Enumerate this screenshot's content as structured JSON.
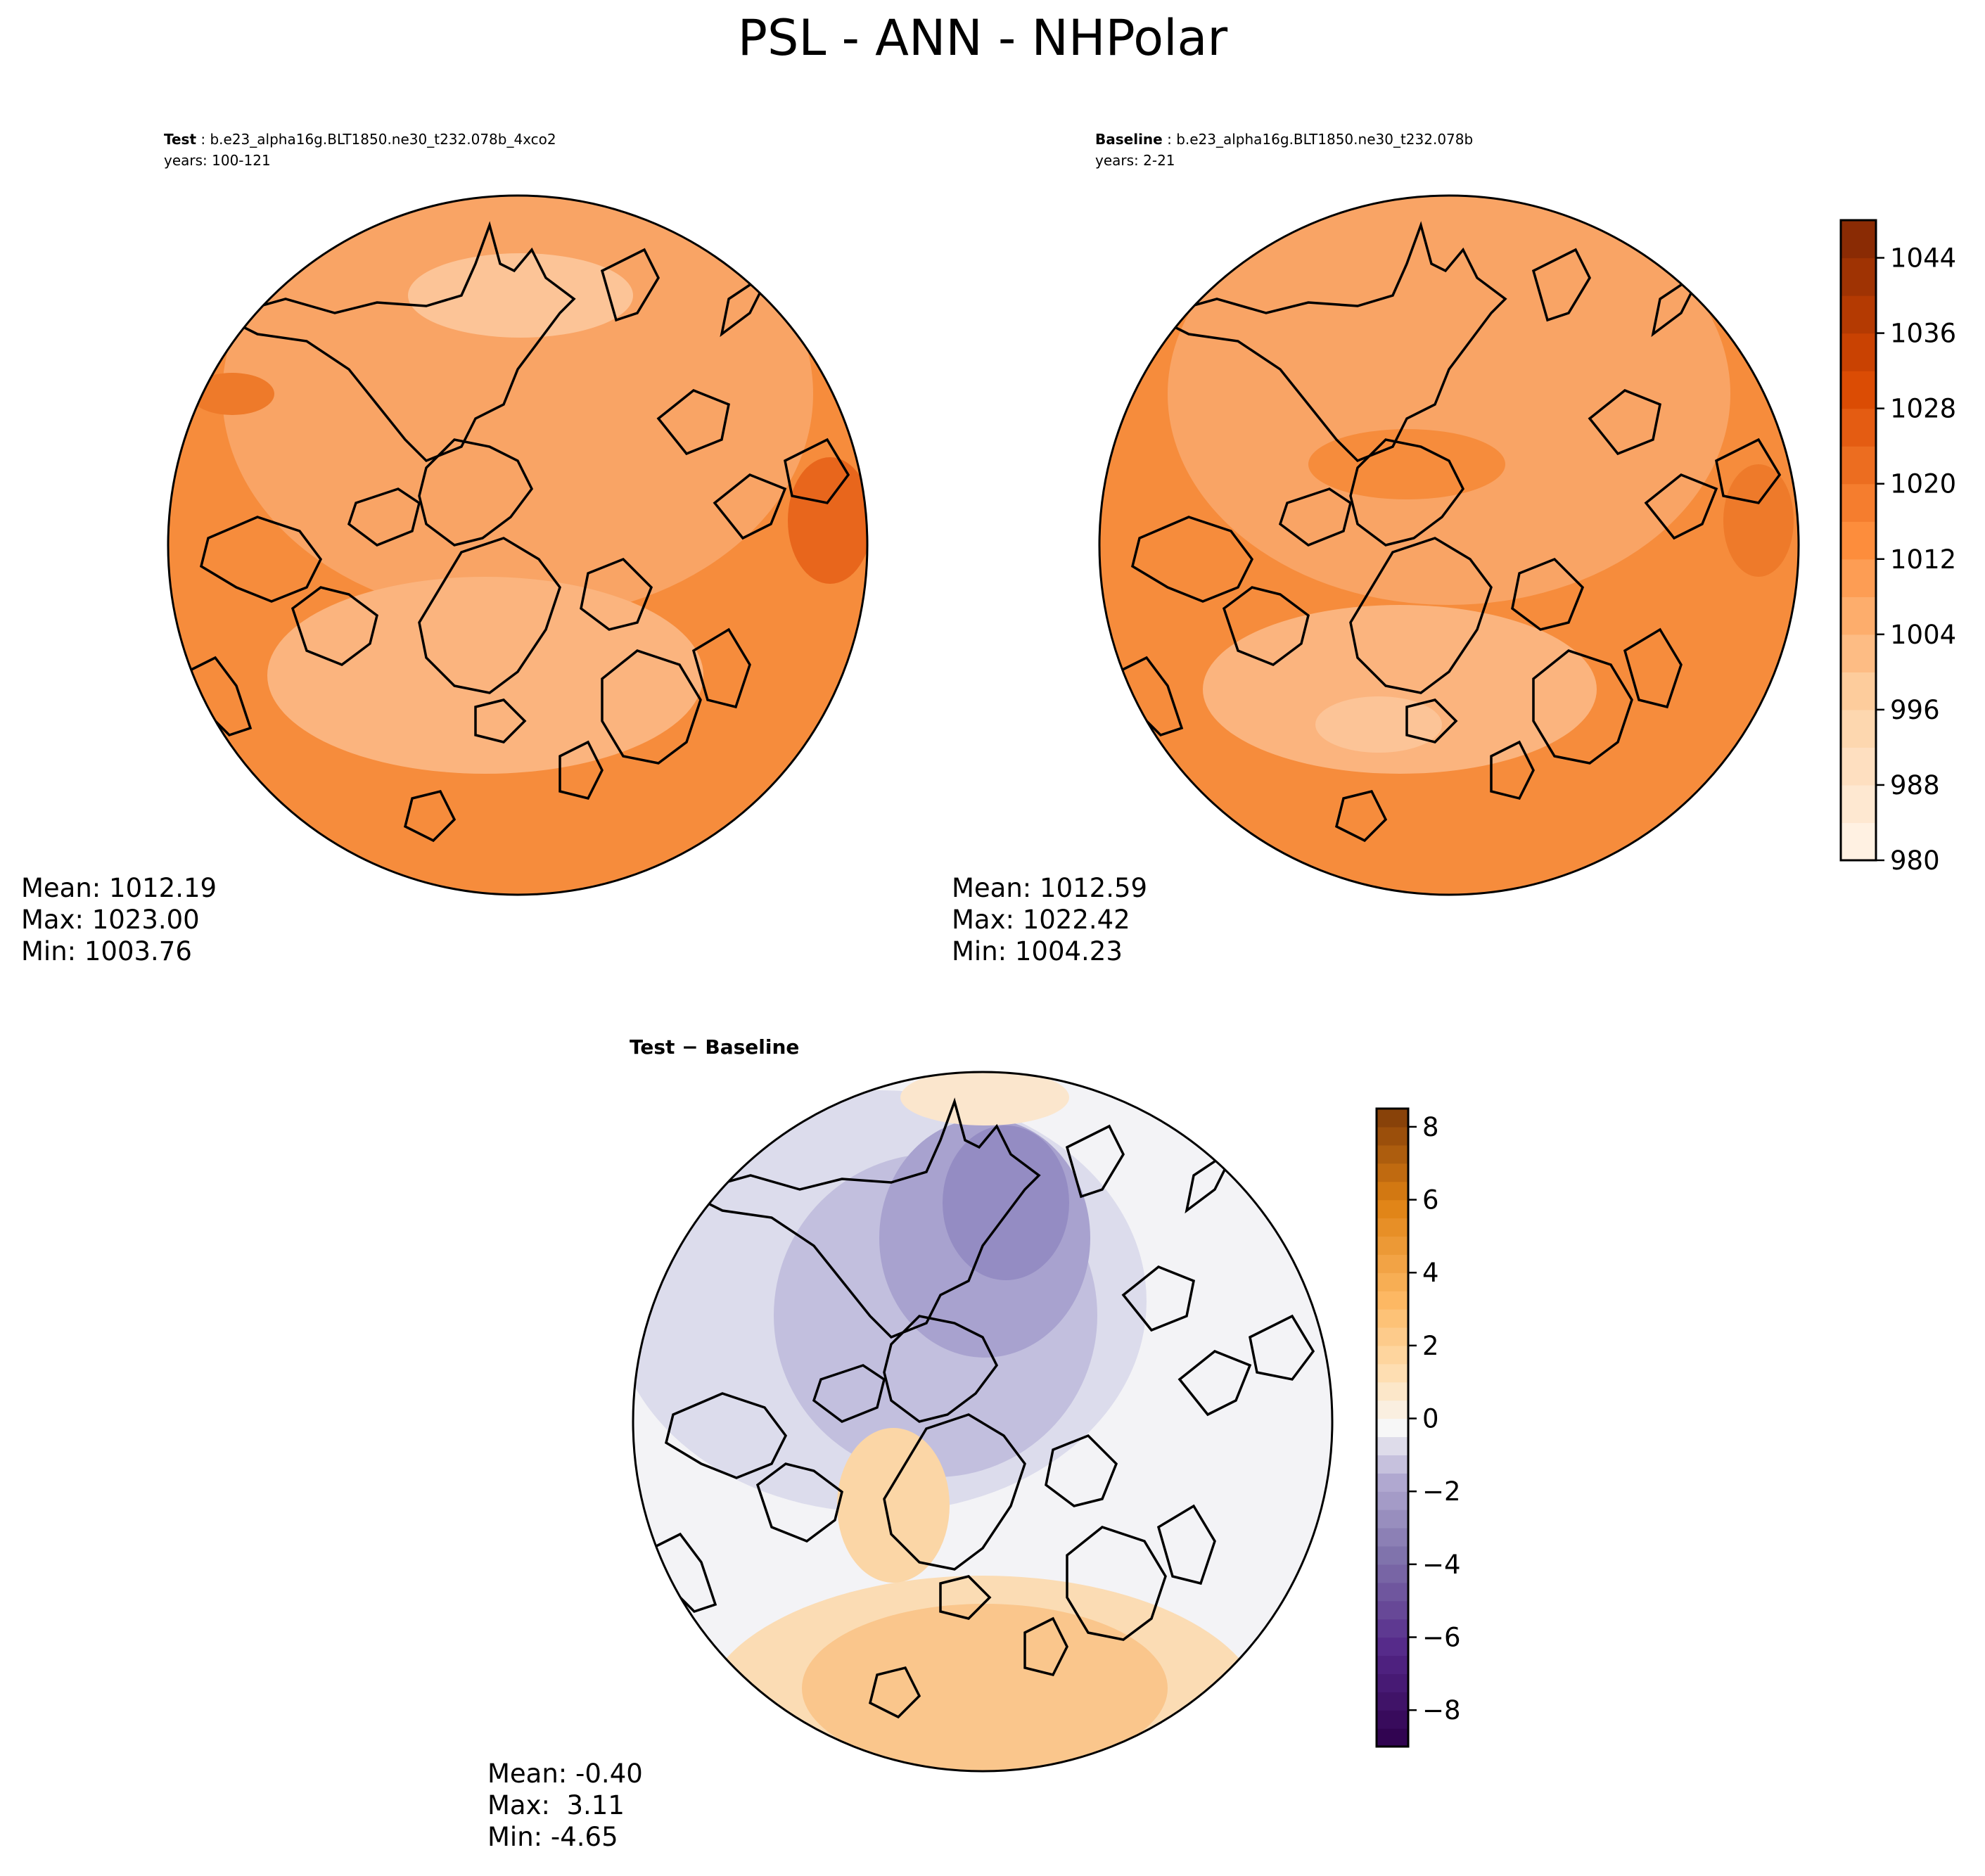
{
  "chart_data": {
    "title": "PSL - ANN - NHPolar",
    "panels": [
      {
        "type": "contourf-polar-map",
        "label": "Test",
        "run": "b.e23_alpha16g.BLT1850.ne30_t232.078b_4xco2",
        "years": "years: 100-121",
        "stats": {
          "mean": "Mean: 1012.19",
          "max": "Max: 1023.00",
          "min": "Min: 1003.76"
        },
        "field_range": [
          1003.76,
          1023.0
        ]
      },
      {
        "type": "contourf-polar-map",
        "label": "Baseline",
        "run": "b.e23_alpha16g.BLT1850.ne30_t232.078b",
        "years": "years: 2-21",
        "stats": {
          "mean": "Mean: 1012.59",
          "max": "Max: 1022.42",
          "min": "Min: 1004.23"
        },
        "field_range": [
          1004.23,
          1022.42
        ]
      },
      {
        "type": "contourf-polar-map",
        "label": "Test − Baseline",
        "run": "",
        "years": "",
        "stats": {
          "mean": "Mean: -0.40",
          "max": "Max:  3.11",
          "min": "Min: -4.65"
        },
        "field_range": [
          -4.65,
          3.11
        ]
      }
    ],
    "colorbars": [
      {
        "name": "absolute",
        "colormap": "Oranges",
        "range": [
          980,
          1048
        ],
        "levels": [
          980,
          984,
          988,
          992,
          996,
          1000,
          1004,
          1008,
          1012,
          1016,
          1020,
          1024,
          1028,
          1032,
          1036,
          1040,
          1044,
          1048
        ],
        "ticks": [
          "980",
          "988",
          "996",
          "1004",
          "1012",
          "1020",
          "1028",
          "1036",
          "1044"
        ],
        "tick_values": [
          980,
          988,
          996,
          1004,
          1012,
          1020,
          1028,
          1036,
          1044
        ]
      },
      {
        "name": "difference",
        "colormap": "PuOr_r",
        "range": [
          -9,
          8.5
        ],
        "levels": [
          -9,
          -8.5,
          -8,
          -7.5,
          -7,
          -6.5,
          -6,
          -5.5,
          -5,
          -4.5,
          -4,
          -3.5,
          -3,
          -2.5,
          -2,
          -1.5,
          -1,
          -0.5,
          0,
          0.5,
          1,
          1.5,
          2,
          2.5,
          3,
          3.5,
          4,
          4.5,
          5,
          5.5,
          6,
          6.5,
          7,
          7.5,
          8,
          8.5
        ],
        "ticks": [
          "−8",
          "−6",
          "−4",
          "−2",
          "0",
          "2",
          "4",
          "6",
          "8"
        ],
        "tick_values": [
          -8,
          -6,
          -4,
          -2,
          0,
          2,
          4,
          6,
          8
        ]
      }
    ]
  }
}
